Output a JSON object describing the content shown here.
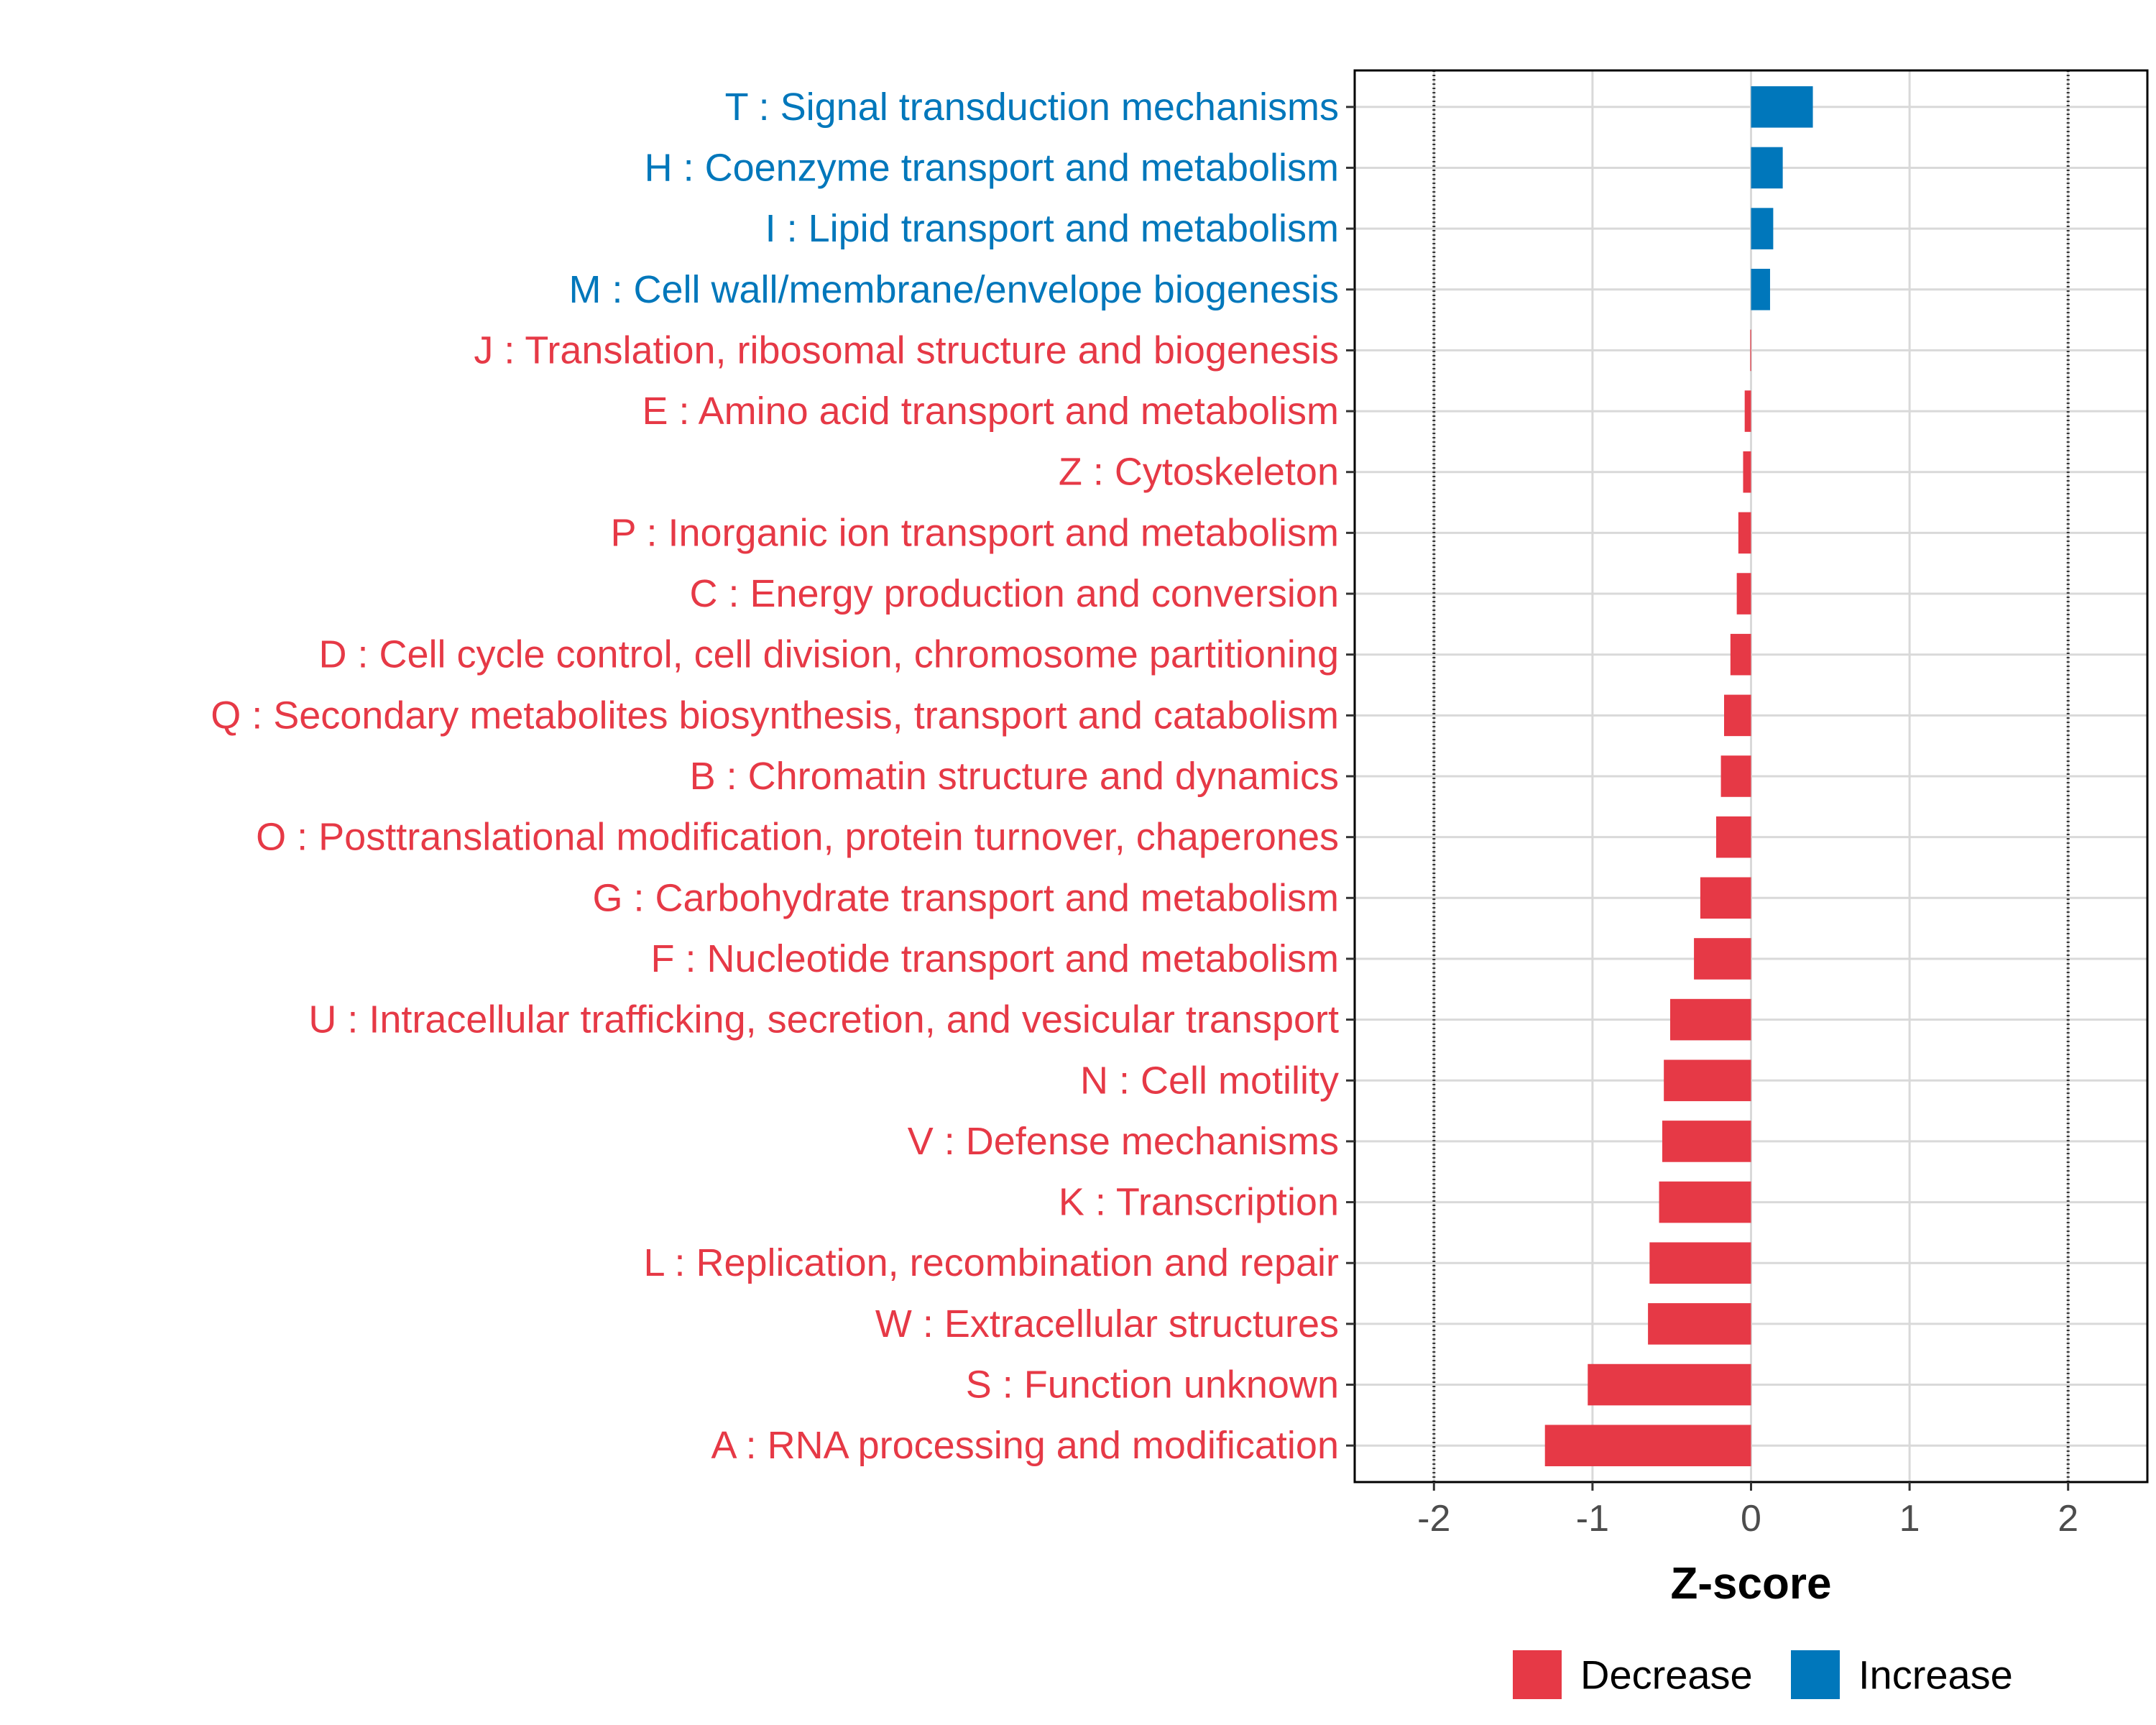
{
  "chart_data": {
    "type": "bar",
    "orientation": "horizontal",
    "xlabel": "Z-score",
    "xlim": [
      -2.5,
      2.5
    ],
    "xticks": [
      -2,
      -1,
      0,
      1,
      2
    ],
    "reference_lines": [
      -2,
      2
    ],
    "grid": true,
    "legend_position": "bottom",
    "colors": {
      "Decrease": "#E63946",
      "Increase": "#0077BB"
    },
    "legend": [
      {
        "label": "Decrease",
        "color": "#E63946"
      },
      {
        "label": "Increase",
        "color": "#0077BB"
      }
    ],
    "bars": [
      {
        "label": "T : Signal transduction mechanisms",
        "value": 0.39,
        "group": "Increase"
      },
      {
        "label": "H : Coenzyme transport and metabolism",
        "value": 0.2,
        "group": "Increase"
      },
      {
        "label": "I : Lipid transport and metabolism",
        "value": 0.14,
        "group": "Increase"
      },
      {
        "label": "M : Cell wall/membrane/envelope biogenesis",
        "value": 0.12,
        "group": "Increase"
      },
      {
        "label": "J : Translation, ribosomal structure and biogenesis",
        "value": -0.005,
        "group": "Decrease"
      },
      {
        "label": "E : Amino acid transport and metabolism",
        "value": -0.04,
        "group": "Decrease"
      },
      {
        "label": "Z : Cytoskeleton",
        "value": -0.05,
        "group": "Decrease"
      },
      {
        "label": "P : Inorganic ion transport and metabolism",
        "value": -0.08,
        "group": "Decrease"
      },
      {
        "label": "C : Energy production and conversion",
        "value": -0.09,
        "group": "Decrease"
      },
      {
        "label": "D : Cell cycle control, cell division, chromosome partitioning",
        "value": -0.13,
        "group": "Decrease"
      },
      {
        "label": "Q : Secondary metabolites biosynthesis, transport and catabolism",
        "value": -0.17,
        "group": "Decrease"
      },
      {
        "label": "B : Chromatin structure and dynamics",
        "value": -0.19,
        "group": "Decrease"
      },
      {
        "label": "O : Posttranslational modification, protein turnover, chaperones",
        "value": -0.22,
        "group": "Decrease"
      },
      {
        "label": "G : Carbohydrate transport and metabolism",
        "value": -0.32,
        "group": "Decrease"
      },
      {
        "label": "F : Nucleotide transport and metabolism",
        "value": -0.36,
        "group": "Decrease"
      },
      {
        "label": "U : Intracellular trafficking, secretion, and vesicular transport",
        "value": -0.51,
        "group": "Decrease"
      },
      {
        "label": "N : Cell motility",
        "value": -0.55,
        "group": "Decrease"
      },
      {
        "label": "V : Defense mechanisms",
        "value": -0.56,
        "group": "Decrease"
      },
      {
        "label": "K : Transcription",
        "value": -0.58,
        "group": "Decrease"
      },
      {
        "label": "L : Replication, recombination and repair",
        "value": -0.64,
        "group": "Decrease"
      },
      {
        "label": "W : Extracellular structures",
        "value": -0.65,
        "group": "Decrease"
      },
      {
        "label": "S : Function unknown",
        "value": -1.03,
        "group": "Decrease"
      },
      {
        "label": "A : RNA processing and modification",
        "value": -1.3,
        "group": "Decrease"
      }
    ]
  }
}
